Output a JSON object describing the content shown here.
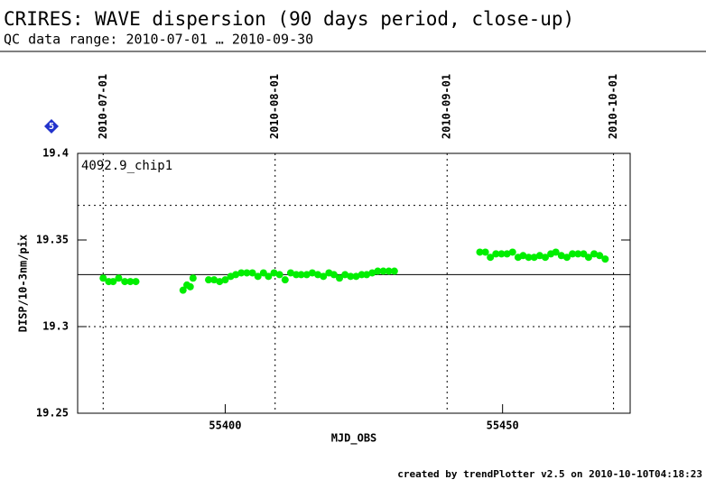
{
  "chart_data": {
    "type": "scatter",
    "title": "CRIRES: WAVE dispersion (90 days period, close-up)",
    "subtitle": "QC data range: 2010-07-01 … 2010-09-30",
    "badge": "5",
    "x_label": "MJD_OBS",
    "y_label": "DISP/10-3nm/pix",
    "footer": "created by trendPlotter v2.5 on 2010-10-10T04:18:23",
    "xlim": [
      55373.4,
      55473
    ],
    "ylim": [
      19.25,
      19.4
    ],
    "xticks": [
      55400,
      55450
    ],
    "yticks": [
      19.25,
      19.3,
      19.35,
      19.4
    ],
    "x2ticks": [
      {
        "value": 55378,
        "label": "2010-07-01"
      },
      {
        "value": 55409,
        "label": "2010-08-01"
      },
      {
        "value": 55440,
        "label": "2010-09-01"
      },
      {
        "value": 55470,
        "label": "2010-10-01"
      }
    ],
    "hlines": [
      {
        "value": 19.37,
        "style": "dotted"
      },
      {
        "value": 19.33,
        "style": "solid"
      },
      {
        "value": 19.3,
        "style": "dotted"
      }
    ],
    "series": [
      {
        "name": "4092.9_chip1",
        "color": "#00ee00",
        "x": [
          55378.0,
          55379.0,
          55379.8,
          55380.8,
          55381.9,
          55382.9,
          55383.9,
          55392.4,
          55393.1,
          55393.7,
          55394.2,
          55397.0,
          55398.0,
          55399.0,
          55400.0,
          55401.0,
          55401.9,
          55402.9,
          55403.9,
          55404.9,
          55405.9,
          55406.9,
          55407.8,
          55408.8,
          55409.8,
          55410.8,
          55411.8,
          55412.8,
          55413.7,
          55414.7,
          55415.7,
          55416.7,
          55417.7,
          55418.7,
          55419.6,
          55420.6,
          55421.6,
          55422.6,
          55423.6,
          55424.6,
          55425.5,
          55426.5,
          55427.5,
          55428.5,
          55429.5,
          55430.5,
          55445.9,
          55446.9,
          55447.8,
          55448.8,
          55449.8,
          55450.8,
          55451.8,
          55452.8,
          55453.7,
          55454.7,
          55455.7,
          55456.7,
          55457.7,
          55458.7,
          55459.6,
          55460.6,
          55461.6,
          55462.6,
          55463.6,
          55464.6,
          55465.5,
          55466.5,
          55467.5,
          55468.5
        ],
        "values": [
          19.328,
          19.326,
          19.326,
          19.328,
          19.326,
          19.326,
          19.326,
          19.321,
          19.324,
          19.323,
          19.328,
          19.327,
          19.327,
          19.326,
          19.327,
          19.329,
          19.33,
          19.331,
          19.331,
          19.331,
          19.329,
          19.331,
          19.329,
          19.331,
          19.33,
          19.327,
          19.331,
          19.33,
          19.33,
          19.33,
          19.331,
          19.33,
          19.329,
          19.331,
          19.33,
          19.328,
          19.33,
          19.329,
          19.329,
          19.33,
          19.33,
          19.331,
          19.332,
          19.332,
          19.332,
          19.332,
          19.343,
          19.343,
          19.34,
          19.342,
          19.342,
          19.342,
          19.343,
          19.34,
          19.341,
          19.34,
          19.34,
          19.341,
          19.34,
          19.342,
          19.343,
          19.341,
          19.34,
          19.342,
          19.342,
          19.342,
          19.34,
          19.342,
          19.341,
          19.339
        ]
      }
    ]
  }
}
